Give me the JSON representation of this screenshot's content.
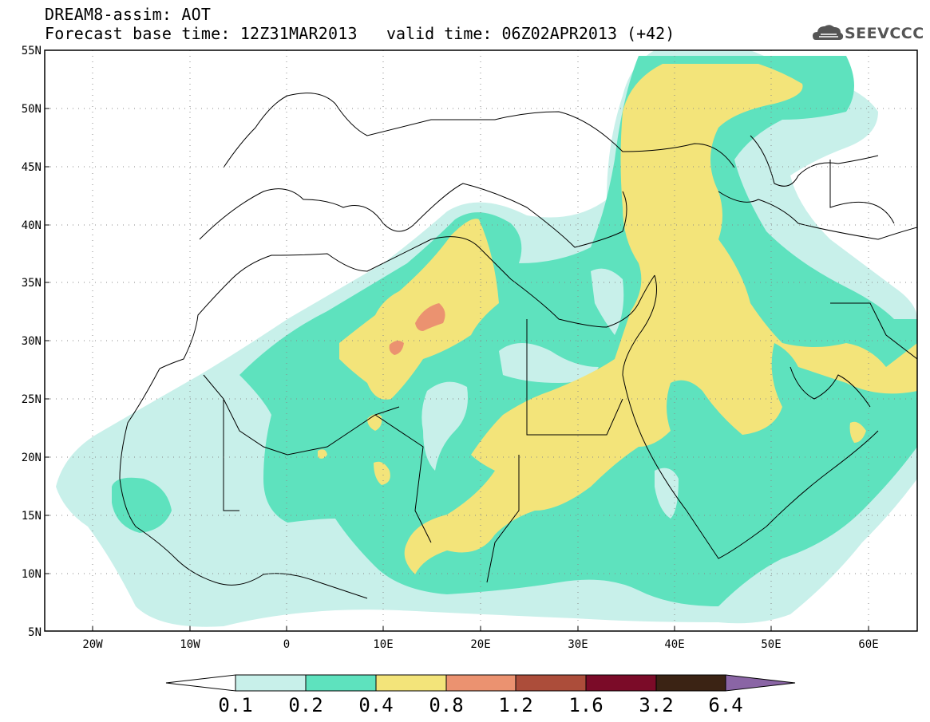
{
  "header": {
    "title": "DREAM8-assim: AOT",
    "base_time": "Forecast base time: 12Z31MAR2013",
    "valid_time": "valid time: 06Z02APR2013 (+42)",
    "logo_text": "SEEVCCC"
  },
  "map": {
    "lon_range": [
      -25,
      65
    ],
    "lat_range": [
      5,
      55
    ],
    "lat_labels": [
      "55N",
      "50N",
      "45N",
      "40N",
      "35N",
      "30N",
      "25N",
      "20N",
      "15N",
      "10N",
      "5N"
    ],
    "lon_labels": [
      "20W",
      "10W",
      "0",
      "10E",
      "20E",
      "30E",
      "40E",
      "50E",
      "60E"
    ],
    "grid": "dotted"
  },
  "colorbar": {
    "labels": [
      "0.1",
      "0.2",
      "0.4",
      "0.8",
      "1.2",
      "1.6",
      "3.2",
      "6.4"
    ],
    "colors": [
      "#ffffff",
      "#c8f0ea",
      "#5ee2be",
      "#f3e47a",
      "#eb9270",
      "#ac4d3a",
      "#7b0b28",
      "#3b2314",
      "#8a65a5"
    ]
  },
  "colors": {
    "level1": "#c8f0ea",
    "level2": "#5ee2be",
    "level3": "#f3e47a",
    "level4": "#eb9270",
    "border": "#000000"
  }
}
